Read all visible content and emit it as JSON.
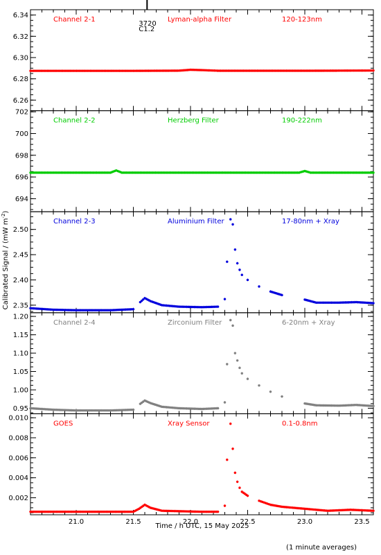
{
  "chart_data": {
    "type": "scatter",
    "xlabel": "Time / h UTC, 15 May 2025",
    "ylabel": "Calibrated Signal / (mW m",
    "ylabel_exp": "-2",
    "ylabel_close": ")",
    "footer": "(1 minute averages)",
    "xlim": [
      20.6,
      23.6
    ],
    "xticks": [
      21.0,
      21.5,
      22.0,
      22.5,
      23.0,
      23.5
    ],
    "xtick_labels": [
      "21.0",
      "21.5",
      "22.0",
      "22.5",
      "23.0",
      "23.5"
    ],
    "marker": {
      "x": 21.62,
      "label1": "3720",
      "label2": "C1.2"
    },
    "panels": [
      {
        "channel": "Channel 2-1",
        "filter": "Lyman-alpha Filter",
        "band": "120-123nm",
        "color": "#ff0000",
        "ylim": [
          6.25,
          6.345
        ],
        "yticks": [
          6.26,
          6.28,
          6.3,
          6.32,
          6.34
        ],
        "ytick_labels": [
          "6.26",
          "6.28",
          "6.30",
          "6.32",
          "6.34"
        ],
        "series": [
          {
            "x": 20.6,
            "y": 6.2875
          },
          {
            "x": 21.5,
            "y": 6.2875
          },
          {
            "x": 21.9,
            "y": 6.2877
          },
          {
            "x": 22.0,
            "y": 6.2885
          },
          {
            "x": 22.1,
            "y": 6.2882
          },
          {
            "x": 22.25,
            "y": 6.2876
          },
          {
            "x": 23.0,
            "y": 6.2876
          },
          {
            "x": 23.6,
            "y": 6.2878
          }
        ]
      },
      {
        "channel": "Channel 2-2",
        "filter": "Herzberg Filter",
        "band": "190-222nm",
        "color": "#00cc00",
        "ylim": [
          692.8,
          702.1
        ],
        "yticks": [
          694,
          696,
          698,
          700,
          702
        ],
        "ytick_labels": [
          "694",
          "696",
          "698",
          "700",
          "702"
        ],
        "series": [
          {
            "x": 20.6,
            "y": 696.4
          },
          {
            "x": 21.3,
            "y": 696.4
          },
          {
            "x": 21.35,
            "y": 696.6
          },
          {
            "x": 21.4,
            "y": 696.4
          },
          {
            "x": 22.95,
            "y": 696.4
          },
          {
            "x": 23.0,
            "y": 696.55
          },
          {
            "x": 23.05,
            "y": 696.4
          },
          {
            "x": 23.6,
            "y": 696.4
          }
        ]
      },
      {
        "channel": "Channel 2-3",
        "filter": "Aluminium Filter",
        "band": "17-80nm + Xray",
        "color": "#0000dd",
        "ylim": [
          2.335,
          2.535
        ],
        "yticks": [
          2.35,
          2.4,
          2.45,
          2.5
        ],
        "ytick_labels": [
          "2.35",
          "2.40",
          "2.45",
          "2.50"
        ],
        "series": [
          {
            "x": 20.6,
            "y": 2.344
          },
          {
            "x": 20.8,
            "y": 2.341
          },
          {
            "x": 21.0,
            "y": 2.34
          },
          {
            "x": 21.3,
            "y": 2.34
          },
          {
            "x": 21.5,
            "y": 2.342
          },
          {
            "x": 21.56,
            "y": 2.356
          },
          {
            "x": 21.6,
            "y": 2.364
          },
          {
            "x": 21.65,
            "y": 2.358
          },
          {
            "x": 21.75,
            "y": 2.35
          },
          {
            "x": 21.9,
            "y": 2.347
          },
          {
            "x": 22.1,
            "y": 2.346
          },
          {
            "x": 22.24,
            "y": 2.347
          },
          {
            "x": 22.3,
            "y": 2.362
          },
          {
            "x": 22.32,
            "y": 2.436
          },
          {
            "x": 22.35,
            "y": 2.52
          },
          {
            "x": 22.37,
            "y": 2.51
          },
          {
            "x": 22.39,
            "y": 2.46
          },
          {
            "x": 22.41,
            "y": 2.433
          },
          {
            "x": 22.43,
            "y": 2.42
          },
          {
            "x": 22.45,
            "y": 2.41
          },
          {
            "x": 22.5,
            "y": 2.4
          },
          {
            "x": 22.6,
            "y": 2.387
          },
          {
            "x": 22.7,
            "y": 2.377
          },
          {
            "x": 22.8,
            "y": 2.37
          },
          {
            "x": 23.0,
            "y": 2.361
          },
          {
            "x": 23.1,
            "y": 2.355
          },
          {
            "x": 23.3,
            "y": 2.355
          },
          {
            "x": 23.45,
            "y": 2.356
          },
          {
            "x": 23.6,
            "y": 2.354
          }
        ]
      },
      {
        "channel": "Channel 2-4",
        "filter": "Zirconium Filter",
        "band": "6-20nm + Xray",
        "color": "#808080",
        "ylim": [
          0.935,
          1.21
        ],
        "yticks": [
          0.95,
          1.0,
          1.05,
          1.1,
          1.15,
          1.2
        ],
        "ytick_labels": [
          "0.95",
          "1.00",
          "1.05",
          "1.10",
          "1.15",
          "1.20"
        ],
        "series": [
          {
            "x": 20.6,
            "y": 0.95
          },
          {
            "x": 20.8,
            "y": 0.946
          },
          {
            "x": 21.0,
            "y": 0.944
          },
          {
            "x": 21.3,
            "y": 0.944
          },
          {
            "x": 21.5,
            "y": 0.946
          },
          {
            "x": 21.56,
            "y": 0.962
          },
          {
            "x": 21.6,
            "y": 0.971
          },
          {
            "x": 21.65,
            "y": 0.964
          },
          {
            "x": 21.75,
            "y": 0.954
          },
          {
            "x": 21.9,
            "y": 0.95
          },
          {
            "x": 22.1,
            "y": 0.948
          },
          {
            "x": 22.24,
            "y": 0.95
          },
          {
            "x": 22.3,
            "y": 0.966
          },
          {
            "x": 22.32,
            "y": 1.07
          },
          {
            "x": 22.35,
            "y": 1.19
          },
          {
            "x": 22.37,
            "y": 1.175
          },
          {
            "x": 22.39,
            "y": 1.1
          },
          {
            "x": 22.41,
            "y": 1.08
          },
          {
            "x": 22.43,
            "y": 1.06
          },
          {
            "x": 22.45,
            "y": 1.045
          },
          {
            "x": 22.5,
            "y": 1.03
          },
          {
            "x": 22.6,
            "y": 1.012
          },
          {
            "x": 22.7,
            "y": 0.995
          },
          {
            "x": 22.8,
            "y": 0.982
          },
          {
            "x": 23.0,
            "y": 0.963
          },
          {
            "x": 23.1,
            "y": 0.958
          },
          {
            "x": 23.3,
            "y": 0.957
          },
          {
            "x": 23.45,
            "y": 0.959
          },
          {
            "x": 23.6,
            "y": 0.956
          }
        ]
      },
      {
        "channel": "GOES",
        "filter": "Xray Sensor",
        "band": "0.1-0.8nm",
        "color": "#ff0000",
        "ylim": [
          0.0003,
          0.0104
        ],
        "yticks": [
          0.002,
          0.004,
          0.006,
          0.008,
          0.01
        ],
        "ytick_labels": [
          "0.002",
          "0.004",
          "0.006",
          "0.008",
          "0.010"
        ],
        "series": [
          {
            "x": 20.6,
            "y": 0.0006
          },
          {
            "x": 21.0,
            "y": 0.0006
          },
          {
            "x": 21.5,
            "y": 0.0006
          },
          {
            "x": 21.55,
            "y": 0.0009
          },
          {
            "x": 21.6,
            "y": 0.0013
          },
          {
            "x": 21.65,
            "y": 0.001
          },
          {
            "x": 21.75,
            "y": 0.0007
          },
          {
            "x": 22.1,
            "y": 0.0006
          },
          {
            "x": 22.24,
            "y": 0.0006
          },
          {
            "x": 22.3,
            "y": 0.0012
          },
          {
            "x": 22.32,
            "y": 0.0058
          },
          {
            "x": 22.35,
            "y": 0.0094
          },
          {
            "x": 22.37,
            "y": 0.0069
          },
          {
            "x": 22.39,
            "y": 0.0045
          },
          {
            "x": 22.41,
            "y": 0.0036
          },
          {
            "x": 22.43,
            "y": 0.003
          },
          {
            "x": 22.45,
            "y": 0.0026
          },
          {
            "x": 22.5,
            "y": 0.0022
          },
          {
            "x": 22.6,
            "y": 0.0017
          },
          {
            "x": 22.7,
            "y": 0.0013
          },
          {
            "x": 22.8,
            "y": 0.0011
          },
          {
            "x": 23.0,
            "y": 0.0009
          },
          {
            "x": 23.2,
            "y": 0.0007
          },
          {
            "x": 23.4,
            "y": 0.0008
          },
          {
            "x": 23.6,
            "y": 0.0007
          }
        ]
      }
    ]
  }
}
